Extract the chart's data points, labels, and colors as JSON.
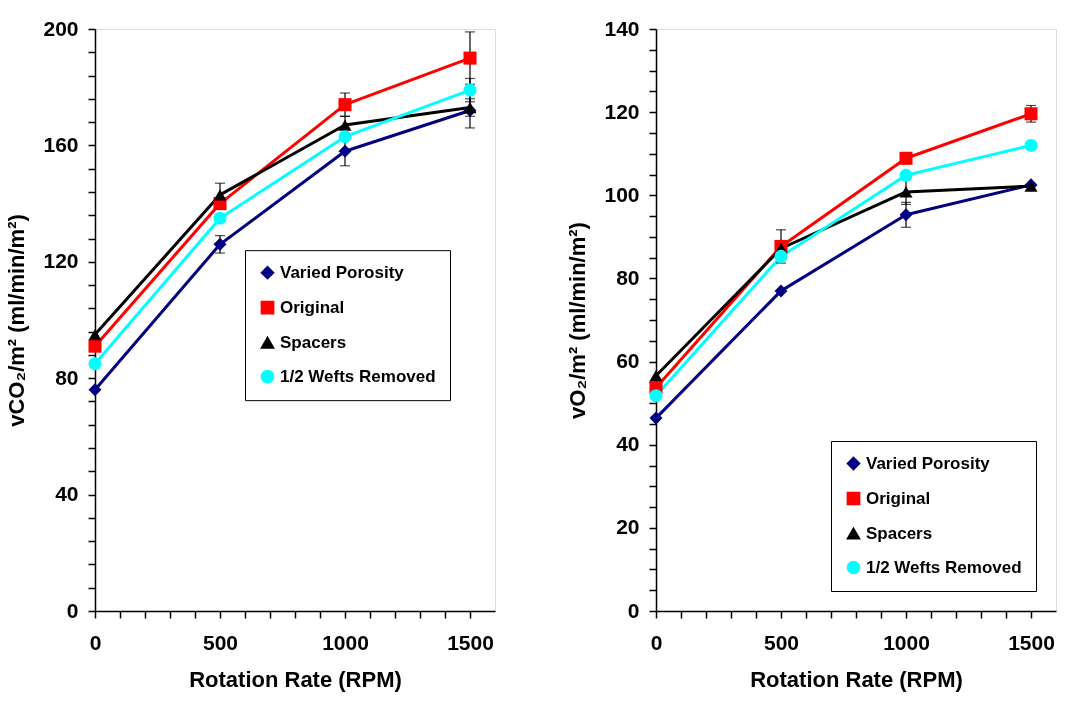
{
  "chart_data": [
    {
      "type": "line",
      "xlabel": "Rotation Rate (RPM)",
      "ylabel": "vCO₂/m² (ml/min/m²)",
      "x": [
        0,
        500,
        1000,
        1500
      ],
      "xlim": [
        0,
        1600
      ],
      "ylim": [
        0,
        200
      ],
      "xticks": [
        0,
        {
          "value": 100,
          "label": null
        },
        {
          "value": 200,
          "label": null
        },
        {
          "value": 300,
          "label": null
        },
        {
          "value": 400,
          "label": null
        },
        500,
        {
          "value": 600,
          "label": null
        },
        {
          "value": 700,
          "label": null
        },
        {
          "value": 800,
          "label": null
        },
        {
          "value": 900,
          "label": null
        },
        1000,
        {
          "value": 1100,
          "label": null
        },
        {
          "value": 1200,
          "label": null
        },
        {
          "value": 1300,
          "label": null
        },
        {
          "value": 1400,
          "label": null
        },
        1500
      ],
      "yticks": [
        0,
        {
          "value": 8,
          "label": null
        },
        {
          "value": 16,
          "label": null
        },
        {
          "value": 24,
          "label": null
        },
        {
          "value": 32,
          "label": null
        },
        40,
        {
          "value": 48,
          "label": null
        },
        {
          "value": 56,
          "label": null
        },
        {
          "value": 64,
          "label": null
        },
        {
          "value": 72,
          "label": null
        },
        80,
        {
          "value": 88,
          "label": null
        },
        {
          "value": 96,
          "label": null
        },
        {
          "value": 104,
          "label": null
        },
        {
          "value": 112,
          "label": null
        },
        120,
        {
          "value": 128,
          "label": null
        },
        {
          "value": 136,
          "label": null
        },
        {
          "value": 144,
          "label": null
        },
        {
          "value": 152,
          "label": null
        },
        160,
        {
          "value": 168,
          "label": null
        },
        {
          "value": 176,
          "label": null
        },
        {
          "value": 184,
          "label": null
        },
        {
          "value": 192,
          "label": null
        },
        200
      ],
      "grid": false,
      "legend": "right",
      "series": [
        {
          "name": "Varied Porosity",
          "color": "#000080",
          "marker": "diamond",
          "values": [
            76,
            126,
            158,
            172
          ],
          "errors": [
            null,
            3,
            5,
            6
          ]
        },
        {
          "name": "Original",
          "color": "#ff0000",
          "marker": "square",
          "values": [
            91,
            140,
            174,
            190
          ],
          "errors": [
            null,
            null,
            4,
            9
          ]
        },
        {
          "name": "Spacers",
          "color": "#000000",
          "marker": "triangle",
          "values": [
            95,
            143,
            167,
            173
          ],
          "errors": [
            null,
            4,
            3,
            3
          ]
        },
        {
          "name": "1/2 Wefts Removed",
          "color": "#00ffff",
          "marker": "circle",
          "values": [
            85,
            135,
            163,
            179
          ],
          "errors": [
            null,
            null,
            null,
            4
          ]
        }
      ]
    },
    {
      "type": "line",
      "xlabel": "Rotation Rate (RPM)",
      "ylabel": "vO₂/m² (ml/min/m²)",
      "x": [
        0,
        500,
        1000,
        1500
      ],
      "xlim": [
        0,
        1600
      ],
      "ylim": [
        0,
        140
      ],
      "xticks": [
        0,
        {
          "value": 100,
          "label": null
        },
        {
          "value": 200,
          "label": null
        },
        {
          "value": 300,
          "label": null
        },
        {
          "value": 400,
          "label": null
        },
        500,
        {
          "value": 600,
          "label": null
        },
        {
          "value": 700,
          "label": null
        },
        {
          "value": 800,
          "label": null
        },
        {
          "value": 900,
          "label": null
        },
        1000,
        {
          "value": 1100,
          "label": null
        },
        {
          "value": 1200,
          "label": null
        },
        {
          "value": 1300,
          "label": null
        },
        {
          "value": 1400,
          "label": null
        },
        1500
      ],
      "yticks": [
        0,
        {
          "value": 5,
          "label": null
        },
        {
          "value": 10,
          "label": null
        },
        {
          "value": 15,
          "label": null
        },
        20,
        {
          "value": 25,
          "label": null
        },
        {
          "value": 30,
          "label": null
        },
        {
          "value": 35,
          "label": null
        },
        40,
        {
          "value": 45,
          "label": null
        },
        {
          "value": 50,
          "label": null
        },
        {
          "value": 55,
          "label": null
        },
        60,
        {
          "value": 65,
          "label": null
        },
        {
          "value": 70,
          "label": null
        },
        {
          "value": 75,
          "label": null
        },
        80,
        {
          "value": 85,
          "label": null
        },
        {
          "value": 90,
          "label": null
        },
        {
          "value": 95,
          "label": null
        },
        100,
        {
          "value": 105,
          "label": null
        },
        {
          "value": 110,
          "label": null
        },
        {
          "value": 115,
          "label": null
        },
        120,
        {
          "value": 125,
          "label": null
        },
        {
          "value": 130,
          "label": null
        },
        {
          "value": 135,
          "label": null
        },
        140
      ],
      "grid": false,
      "legend": "bottom right",
      "series": [
        {
          "name": "Varied Porosity",
          "color": "#000080",
          "marker": "diamond",
          "values": [
            46.4,
            77,
            95.3,
            102.5
          ],
          "errors": [
            null,
            null,
            3,
            null
          ]
        },
        {
          "name": "Original",
          "color": "#ff0000",
          "marker": "square",
          "values": [
            53.7,
            87.7,
            108.9,
            119.6
          ],
          "errors": [
            null,
            4,
            null,
            2
          ]
        },
        {
          "name": "Spacers",
          "color": "#000000",
          "marker": "triangle",
          "values": [
            56.6,
            87.2,
            100.8,
            102.2
          ],
          "errors": [
            null,
            null,
            3,
            null
          ]
        },
        {
          "name": "1/2 Wefts Removed",
          "color": "#00ffff",
          "marker": "circle",
          "values": [
            51.8,
            85.3,
            104.8,
            112
          ],
          "errors": [
            null,
            null,
            null,
            null
          ]
        }
      ]
    }
  ]
}
